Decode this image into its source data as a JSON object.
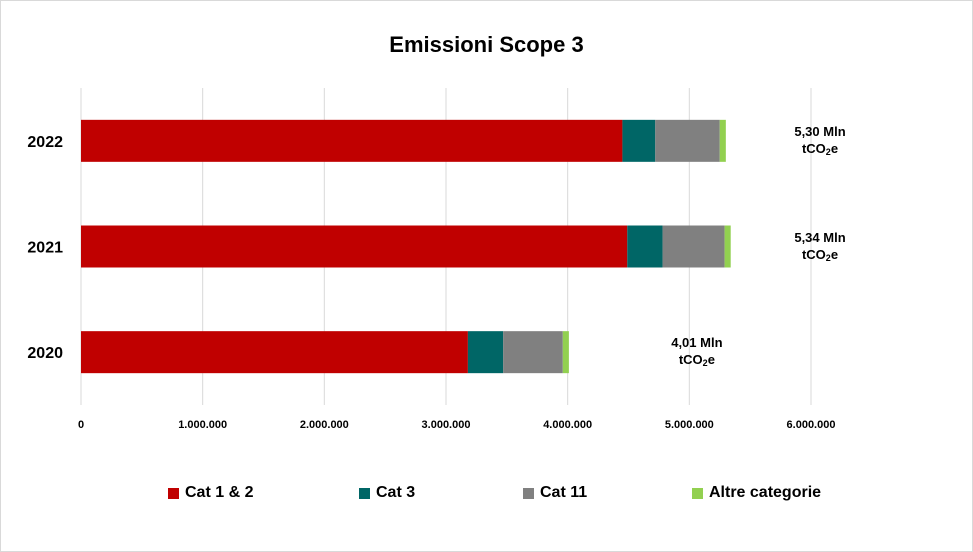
{
  "chart_data": {
    "type": "bar",
    "orientation": "horizontal",
    "stacked": true,
    "title": "Emissioni Scope 3",
    "categories": [
      "2022",
      "2021",
      "2020"
    ],
    "series": [
      {
        "name": "Cat 1 & 2",
        "color": "#c00000",
        "values": [
          4450000,
          4490000,
          3180000
        ]
      },
      {
        "name": "Cat 3",
        "color": "#006666",
        "values": [
          270000,
          290000,
          290000
        ]
      },
      {
        "name": "Cat 11",
        "color": "#808080",
        "values": [
          530000,
          510000,
          490000
        ]
      },
      {
        "name": "Altre categorie",
        "color": "#92d050",
        "values": [
          50000,
          50000,
          50000
        ]
      }
    ],
    "totals": [
      {
        "value": "5,30 Mln",
        "unit_main": "tCO",
        "unit_sub": "2",
        "unit_tail": "e"
      },
      {
        "value": "5,34 Mln",
        "unit_main": "tCO",
        "unit_sub": "2",
        "unit_tail": "e"
      },
      {
        "value": "4,01 Mln",
        "unit_main": "tCO",
        "unit_sub": "2",
        "unit_tail": "e"
      }
    ],
    "xlim": [
      0,
      6000000
    ],
    "x_ticks": [
      0,
      1000000,
      2000000,
      3000000,
      4000000,
      5000000,
      6000000
    ],
    "x_tick_labels": [
      "0",
      "1.000.000",
      "2.000.000",
      "3.000.000",
      "4.000.000",
      "5.000.000",
      "6.000.000"
    ],
    "grid": "vertical",
    "legend_position": "bottom"
  }
}
